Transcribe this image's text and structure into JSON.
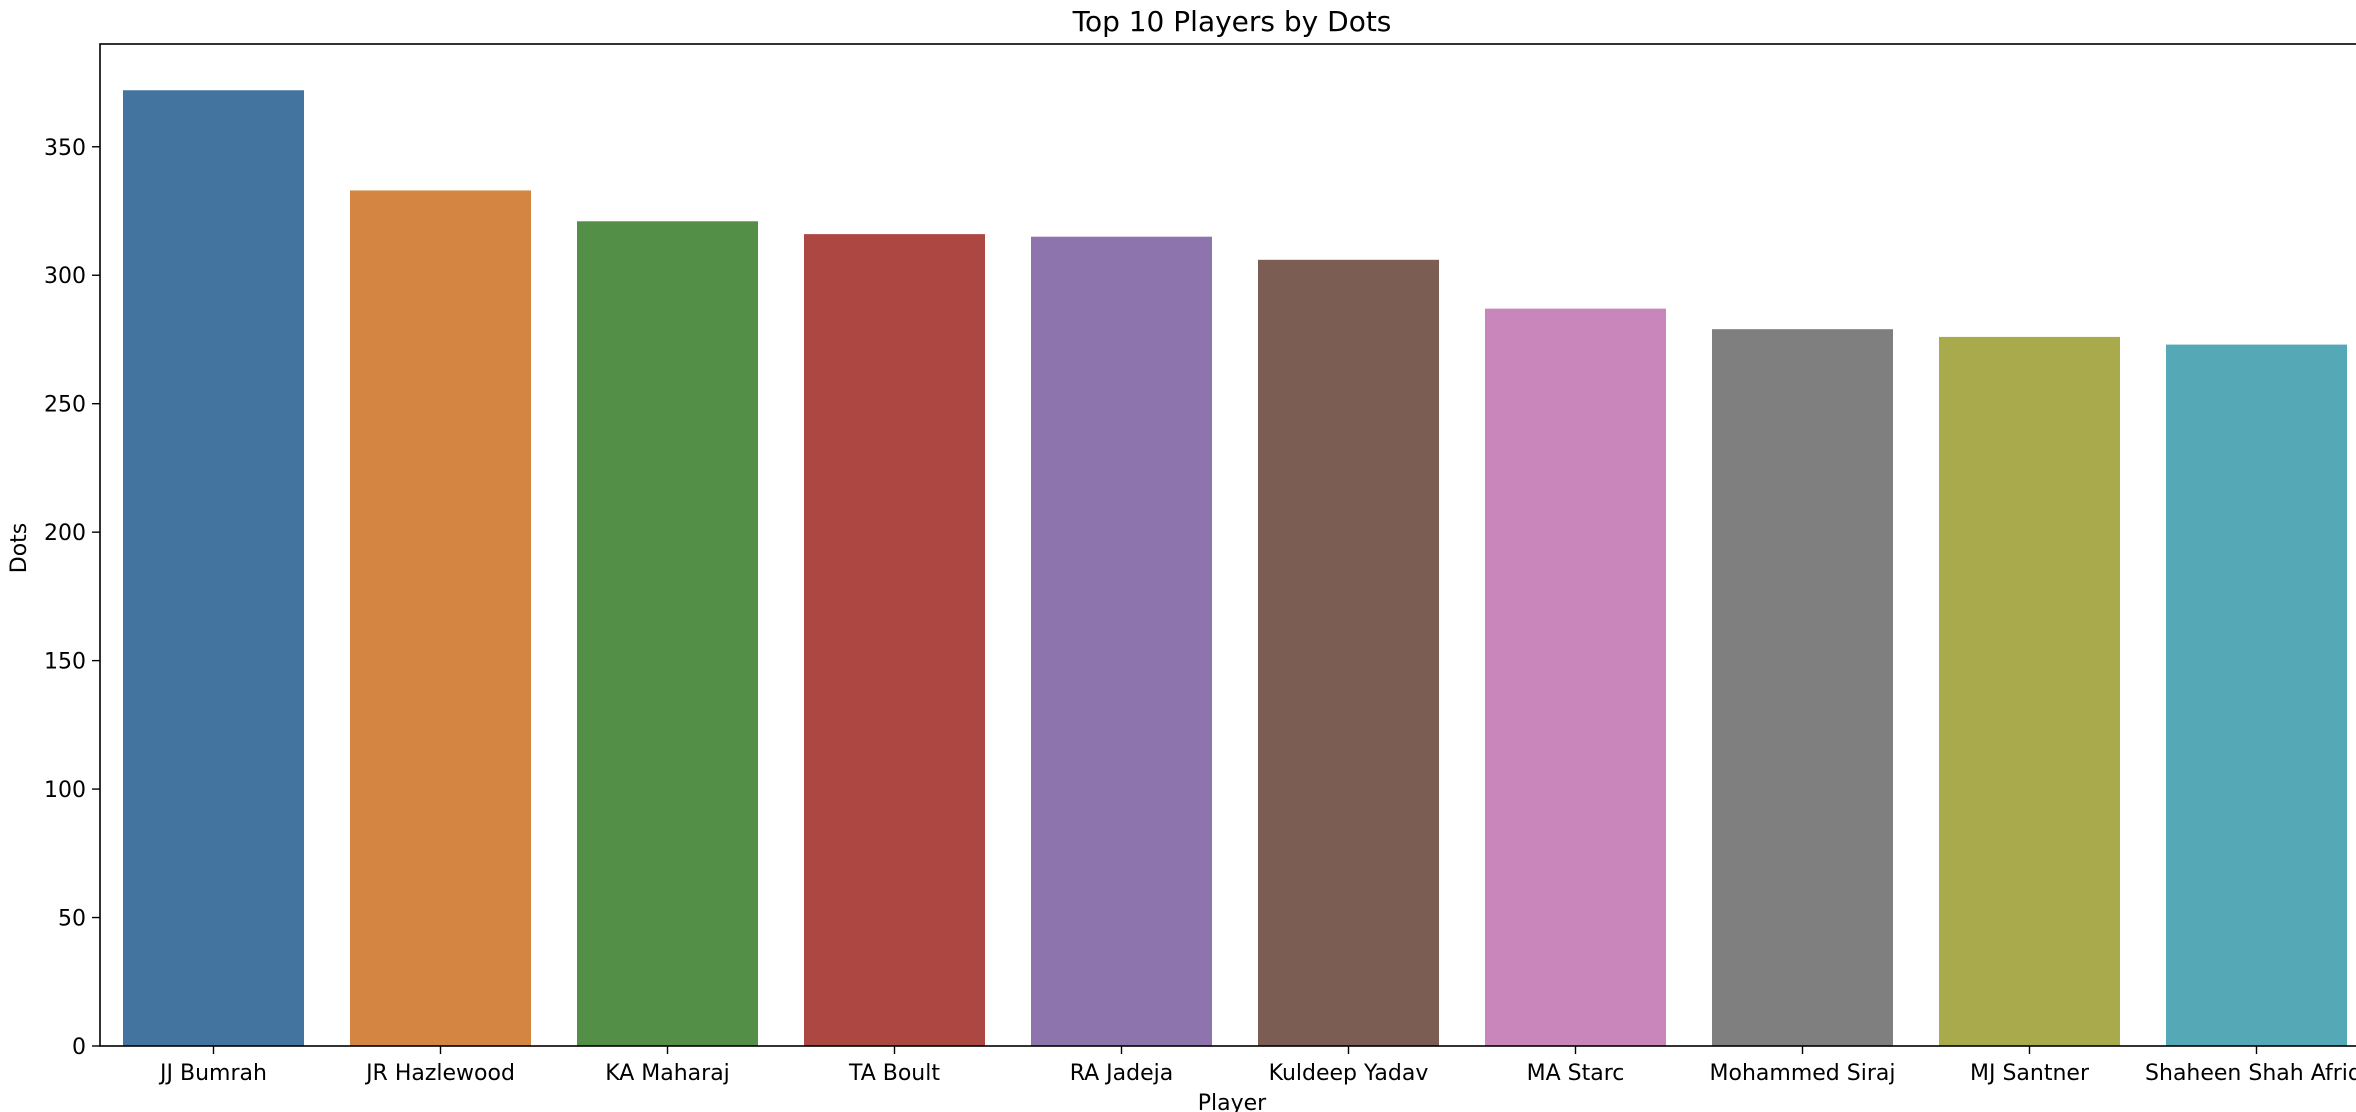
{
  "chart_data": {
    "type": "bar",
    "title": "Top 10 Players by Dots",
    "xlabel": "Player",
    "ylabel": "Dots",
    "categories": [
      "JJ Bumrah",
      "JR Hazlewood",
      "KA Maharaj",
      "TA Boult",
      "RA Jadeja",
      "Kuldeep Yadav",
      "MA Starc",
      "Mohammed Siraj",
      "MJ Santner",
      "Shaheen Shah Afridi"
    ],
    "values": [
      372,
      333,
      321,
      316,
      315,
      306,
      287,
      279,
      276,
      273
    ],
    "colors": [
      "#4374a0",
      "#d38541",
      "#538f47",
      "#ac4742",
      "#8e74ad",
      "#7c5d53",
      "#c886bb",
      "#7f7f7f",
      "#a9aa4b",
      "#55a8b5"
    ],
    "ylim": [
      0,
      390
    ],
    "yticks": [
      0,
      50,
      100,
      150,
      200,
      250,
      300,
      350
    ],
    "grid": false,
    "legend": false
  }
}
